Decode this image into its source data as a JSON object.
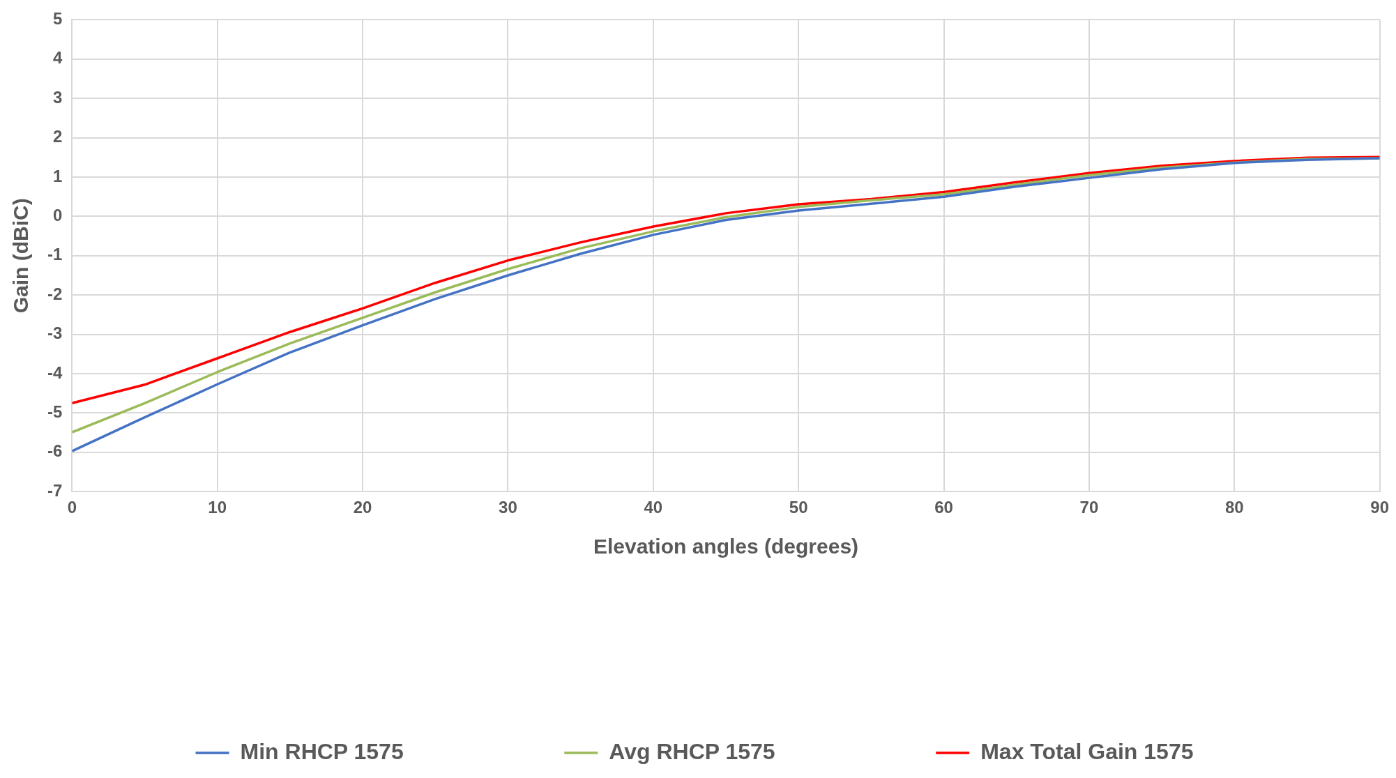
{
  "chart_data": {
    "type": "line",
    "xlabel": "Elevation angles (degrees)",
    "ylabel": "Gain (dBiC)",
    "x": [
      0,
      5,
      10,
      15,
      20,
      25,
      30,
      35,
      40,
      45,
      50,
      55,
      60,
      65,
      70,
      75,
      80,
      85,
      90
    ],
    "xlim": [
      0,
      90
    ],
    "xticks": [
      0,
      10,
      20,
      30,
      40,
      50,
      60,
      70,
      80,
      90
    ],
    "ylim": [
      -7,
      5
    ],
    "yticks": [
      -7,
      -6,
      -5,
      -4,
      -3,
      -2,
      -1,
      0,
      1,
      2,
      3,
      4,
      5
    ],
    "grid": true,
    "legend": "bottom",
    "marker": "none",
    "line_style": "solid",
    "series": [
      {
        "name": "Min RHCP 1575",
        "color": "#4472c4",
        "values": [
          -5.97,
          -5.11,
          -4.27,
          -3.46,
          -2.77,
          -2.1,
          -1.5,
          -0.95,
          -0.47,
          -0.09,
          0.15,
          0.32,
          0.5,
          0.76,
          0.98,
          1.2,
          1.36,
          1.44,
          1.48
        ]
      },
      {
        "name": "Avg RHCP 1575",
        "color": "#9bbb59",
        "values": [
          -5.49,
          -4.75,
          -3.96,
          -3.23,
          -2.58,
          -1.93,
          -1.34,
          -0.81,
          -0.38,
          -0.02,
          0.24,
          0.41,
          0.56,
          0.81,
          1.05,
          1.24,
          1.37,
          1.46,
          1.48
        ]
      },
      {
        "name": "Max Total Gain 1575",
        "color": "#ff0000",
        "values": [
          -4.75,
          -4.28,
          -3.61,
          -2.94,
          -2.34,
          -1.69,
          -1.12,
          -0.66,
          -0.26,
          0.08,
          0.31,
          0.44,
          0.62,
          0.87,
          1.1,
          1.29,
          1.41,
          1.49,
          1.51
        ]
      }
    ]
  }
}
